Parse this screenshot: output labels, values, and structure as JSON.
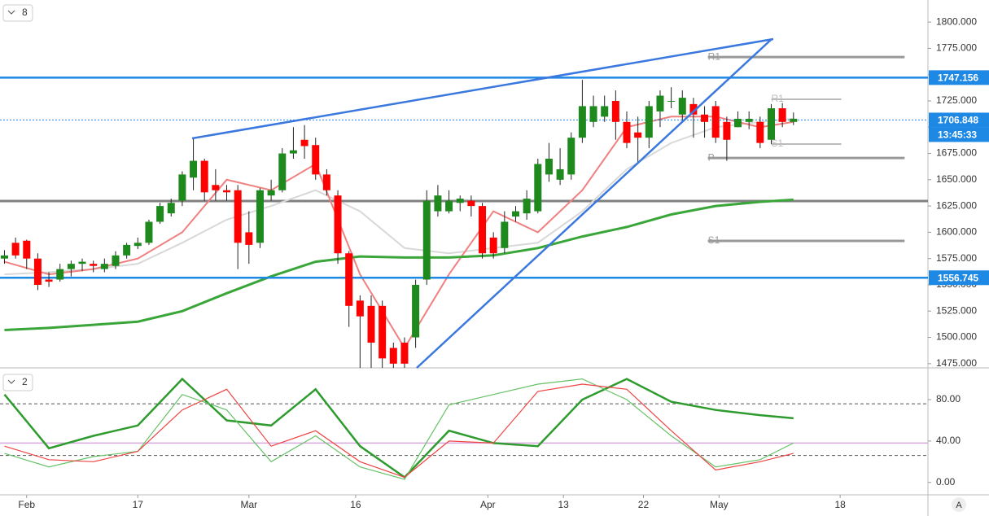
{
  "chart_data": {
    "type": "candlestick",
    "pane_label": "8",
    "xlim": [
      -0.4,
      83.1
    ],
    "xticks": [
      {
        "value": 2,
        "label": "Feb"
      },
      {
        "value": 12,
        "label": "17"
      },
      {
        "value": 22,
        "label": "Mar"
      },
      {
        "value": 31.6,
        "label": "16"
      },
      {
        "value": 43.5,
        "label": "Apr"
      },
      {
        "value": 50.3,
        "label": "13"
      },
      {
        "value": 57.5,
        "label": "22"
      },
      {
        "value": 64.3,
        "label": "May"
      },
      {
        "value": 75.2,
        "label": "18"
      }
    ],
    "ylim": [
      1471,
      1821
    ],
    "yticks": [
      {
        "value": 1475,
        "label": "1475.000"
      },
      {
        "value": 1500,
        "label": "1500.000"
      },
      {
        "value": 1525,
        "label": "1525.000"
      },
      {
        "value": 1550,
        "label": "1550.000"
      },
      {
        "value": 1575,
        "label": "1575.000"
      },
      {
        "value": 1600,
        "label": "1600.000"
      },
      {
        "value": 1625,
        "label": "1625.000"
      },
      {
        "value": 1650,
        "label": "1650.000"
      },
      {
        "value": 1675,
        "label": "1675.000"
      },
      {
        "value": 1700,
        "label": "1700.000"
      },
      {
        "value": 1725,
        "label": "1725.000"
      },
      {
        "value": 1750,
        "label": "1750.000"
      },
      {
        "value": 1775,
        "label": "1775.000"
      },
      {
        "value": 1800,
        "label": "1800.000"
      }
    ],
    "up_color": "#1e8a1e",
    "down_color": "#ff0000",
    "candles": [
      [
        1575,
        1583,
        1570,
        1578
      ],
      [
        1590,
        1595,
        1575,
        1578
      ],
      [
        1592,
        1593,
        1565,
        1575
      ],
      [
        1575,
        1580,
        1545,
        1550
      ],
      [
        1555,
        1562,
        1548,
        1553
      ],
      [
        1555,
        1570,
        1553,
        1565
      ],
      [
        1565,
        1573,
        1558,
        1570
      ],
      [
        1570,
        1575,
        1563,
        1572
      ],
      [
        1570,
        1573,
        1562,
        1568
      ],
      [
        1565,
        1575,
        1562,
        1570
      ],
      [
        1568,
        1582,
        1565,
        1578
      ],
      [
        1578,
        1590,
        1575,
        1588
      ],
      [
        1587,
        1595,
        1584,
        1590
      ],
      [
        1590,
        1612,
        1588,
        1610
      ],
      [
        1610,
        1628,
        1608,
        1625
      ],
      [
        1618,
        1632,
        1615,
        1628
      ],
      [
        1630,
        1658,
        1625,
        1655
      ],
      [
        1652,
        1690,
        1640,
        1668
      ],
      [
        1668,
        1670,
        1630,
        1638
      ],
      [
        1645,
        1660,
        1630,
        1640
      ],
      [
        1640,
        1645,
        1630,
        1638
      ],
      [
        1640,
        1645,
        1565,
        1590
      ],
      [
        1600,
        1620,
        1570,
        1588
      ],
      [
        1590,
        1642,
        1585,
        1640
      ],
      [
        1635,
        1650,
        1630,
        1640
      ],
      [
        1640,
        1680,
        1638,
        1675
      ],
      [
        1675,
        1700,
        1670,
        1678
      ],
      [
        1688,
        1702,
        1670,
        1682
      ],
      [
        1683,
        1690,
        1650,
        1655
      ],
      [
        1655,
        1660,
        1635,
        1640
      ],
      [
        1635,
        1640,
        1570,
        1580
      ],
      [
        1580,
        1582,
        1510,
        1530
      ],
      [
        1535,
        1540,
        1471,
        1520
      ],
      [
        1530,
        1540,
        1471,
        1495
      ],
      [
        1530,
        1535,
        1471,
        1480
      ],
      [
        1490,
        1495,
        1471,
        1475
      ],
      [
        1495,
        1500,
        1471,
        1475
      ],
      [
        1500,
        1555,
        1490,
        1550
      ],
      [
        1555,
        1640,
        1550,
        1630
      ],
      [
        1620,
        1645,
        1615,
        1635
      ],
      [
        1620,
        1640,
        1618,
        1630
      ],
      [
        1628,
        1635,
        1620,
        1632
      ],
      [
        1630,
        1635,
        1615,
        1625
      ],
      [
        1625,
        1628,
        1575,
        1580
      ],
      [
        1595,
        1600,
        1575,
        1580
      ],
      [
        1585,
        1620,
        1580,
        1610
      ],
      [
        1615,
        1625,
        1610,
        1620
      ],
      [
        1618,
        1640,
        1612,
        1632
      ],
      [
        1620,
        1670,
        1618,
        1665
      ],
      [
        1655,
        1685,
        1648,
        1670
      ],
      [
        1650,
        1680,
        1645,
        1660
      ],
      [
        1655,
        1695,
        1650,
        1690
      ],
      [
        1690,
        1745,
        1685,
        1720
      ],
      [
        1705,
        1730,
        1700,
        1720
      ],
      [
        1710,
        1730,
        1705,
        1720
      ],
      [
        1725,
        1735,
        1688,
        1705
      ],
      [
        1705,
        1715,
        1680,
        1685
      ],
      [
        1695,
        1710,
        1665,
        1690
      ],
      [
        1690,
        1725,
        1680,
        1720
      ],
      [
        1715,
        1735,
        1700,
        1730
      ],
      [
        1725,
        1738,
        1718,
        1725
      ],
      [
        1712,
        1735,
        1705,
        1728
      ],
      [
        1722,
        1728,
        1690,
        1712
      ],
      [
        1712,
        1720,
        1690,
        1705
      ],
      [
        1720,
        1725,
        1685,
        1690
      ],
      [
        1705,
        1710,
        1668,
        1688
      ],
      [
        1700,
        1715,
        1700,
        1708
      ],
      [
        1705,
        1715,
        1698,
        1708
      ],
      [
        1705,
        1710,
        1680,
        1685
      ],
      [
        1688,
        1722,
        1684,
        1718
      ],
      [
        1718,
        1723,
        1700,
        1705
      ],
      [
        1705,
        1714,
        1702,
        1708
      ]
    ],
    "line_x": [
      0,
      4,
      8,
      12,
      16,
      20,
      24,
      28,
      32,
      36,
      40,
      44,
      48,
      52,
      56,
      60,
      64,
      68,
      71
    ],
    "lines": [
      {
        "color": "#d8d8d8",
        "width": 2,
        "values": [
          1560,
          1562,
          1565,
          1570,
          1590,
          1612,
          1625,
          1640,
          1620,
          1585,
          1580,
          1585,
          1590,
          1620,
          1660,
          1685,
          1700,
          1705,
          1708
        ]
      },
      {
        "color": "#f08080",
        "width": 2,
        "values": [
          1572,
          1560,
          1565,
          1575,
          1600,
          1650,
          1640,
          1665,
          1560,
          1490,
          1560,
          1620,
          1600,
          1640,
          1700,
          1710,
          1710,
          1700,
          1705
        ]
      },
      {
        "color": "#3aa63a",
        "width": 3,
        "values": [
          1507,
          1509,
          1512,
          1515,
          1525,
          1542,
          1558,
          1572,
          1577,
          1576,
          1576,
          1578,
          1585,
          1596,
          1605,
          1617,
          1625,
          1629,
          1631
        ]
      }
    ],
    "levels": [
      {
        "value": 1747.156,
        "color": "#1e88e5"
      },
      {
        "value": 1706.848,
        "color": "#1e88e5"
      },
      {
        "value": 1556.745,
        "color": "#1e88e5"
      }
    ],
    "countdown": "13:45:33",
    "support_level": {
      "value": 1629.7,
      "color": "#808080"
    },
    "pivot_sets": [
      {
        "start": 63.3,
        "end": 81,
        "levels": [
          {
            "label": "R1",
            "value": 1766.7
          },
          {
            "label": "P",
            "value": 1670.7
          },
          {
            "label": "S1",
            "value": 1591.8
          }
        ]
      },
      {
        "start": 69,
        "end": 75.3,
        "levels": [
          {
            "label": "R1",
            "value": 1726.5
          },
          {
            "label": "S1",
            "value": 1683.9
          }
        ]
      }
    ],
    "oscillator": {
      "pane_label": "2",
      "ylim": [
        -12,
        110.7
      ],
      "yticks": [
        {
          "value": 0,
          "label": "0.00"
        },
        {
          "value": 40,
          "label": "40.00"
        },
        {
          "value": 80,
          "label": "80.00"
        }
      ],
      "levels": [
        {
          "value": 76,
          "color": "#555555",
          "dash": true
        },
        {
          "value": 26,
          "color": "#555555",
          "dash": true
        },
        {
          "value": 38,
          "color": "#d9a6e0",
          "dash": false
        }
      ],
      "lines": [
        {
          "color": "#2e9b2e",
          "width": 2.5,
          "values": [
            85,
            33,
            45,
            55,
            100,
            60,
            55,
            90,
            35,
            5,
            50,
            38,
            35,
            80,
            100,
            78,
            70,
            65,
            62
          ]
        },
        {
          "color": "#66c266",
          "width": 1.2,
          "values": [
            28,
            15,
            25,
            30,
            85,
            70,
            20,
            45,
            15,
            3,
            75,
            85,
            95,
            100,
            80,
            45,
            15,
            22,
            38
          ]
        },
        {
          "color": "#ee4444",
          "width": 1.2,
          "values": [
            35,
            22,
            20,
            30,
            70,
            90,
            35,
            50,
            20,
            5,
            40,
            38,
            88,
            95,
            90,
            50,
            12,
            20,
            28
          ]
        }
      ]
    },
    "corner_label": "A"
  }
}
